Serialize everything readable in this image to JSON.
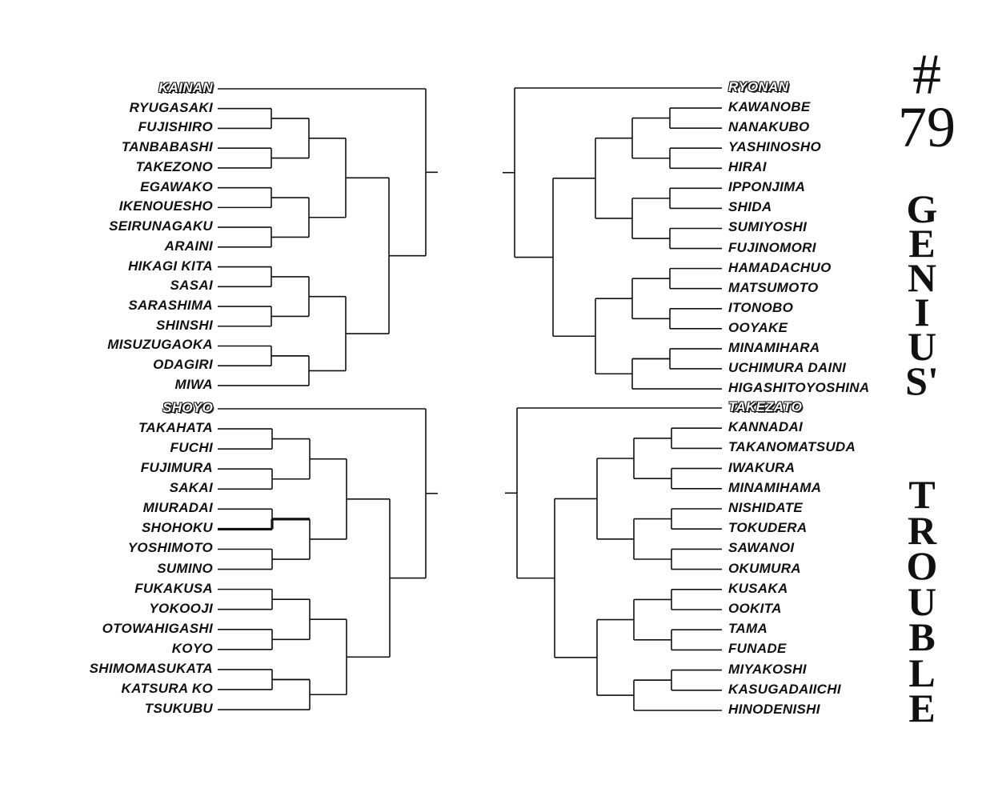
{
  "title": {
    "number_line1": "#",
    "number_line2": "79",
    "word1": "GENIUS'",
    "word2": "TROUBLE"
  },
  "bracket": {
    "left_top": {
      "seed": "KAINAN",
      "teams": [
        "RYUGASAKI",
        "FUJISHIRO",
        "TANBABASHI",
        "TAKEZONO",
        "EGAWAKO",
        "IKENOUESHO",
        "SEIRUNAGAKU",
        "ARAINI",
        "HIKAGI KITA",
        "SASAI",
        "SARASHIMA",
        "SHINSHI",
        "MISUZUGAOKA",
        "ODAGIRI",
        "MIWA"
      ]
    },
    "left_bottom": {
      "seed": "SHOYO",
      "teams": [
        "TAKAHATA",
        "FUCHI",
        "FUJIMURA",
        "SAKAI",
        "MIURADAI",
        "SHOHOKU",
        "YOSHIMOTO",
        "SUMINO",
        "FUKAKUSA",
        "YOKOOJI",
        "OTOWAHIGASHI",
        "KOYO",
        "SHIMOMASUKATA",
        "KATSURA KO",
        "TSUKUBU"
      ],
      "highlighted_team": "SHOHOKU"
    },
    "right_top": {
      "seed": "RYONAN",
      "teams": [
        "KAWANOBE",
        "NANAKUBO",
        "YASHINOSHO",
        "HIRAI",
        "IPPONJIMA",
        "SHIDA",
        "SUMIYOSHI",
        "FUJINOMORI",
        "HAMADACHUO",
        "MATSUMOTO",
        "ITONOBO",
        "OOYAKE",
        "MINAMIHARA",
        "UCHIMURA DAINI",
        "HIGASHITOYOSHINA"
      ]
    },
    "right_bottom": {
      "seed": "TAKEZATO",
      "teams": [
        "KANNADAI",
        "TAKANOMATSUDA",
        "IWAKURA",
        "MINAMIHAMA",
        "NISHIDATE",
        "TOKUDERA",
        "SAWANOI",
        "OKUMURA",
        "KUSAKA",
        "OOKITA",
        "TAMA",
        "FUNADE",
        "MIYAKOSHI",
        "KASUGADAIICHI",
        "HINODENISHI"
      ]
    }
  },
  "colors": {
    "ink": "#111111",
    "paper": "#ffffff"
  }
}
